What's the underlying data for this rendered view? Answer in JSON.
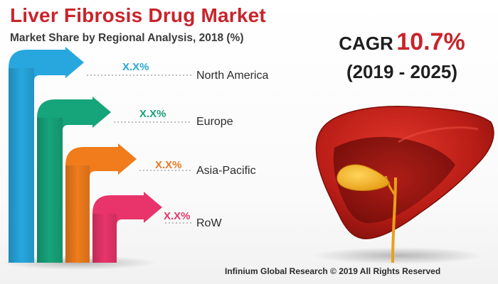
{
  "header": {
    "title": "Liver Fibrosis Drug Market",
    "subtitle": "Market Share by Regional Analysis, 2018 (%)"
  },
  "cagr": {
    "label": "CAGR",
    "value": "10.7%",
    "period": "(2019 - 2025)"
  },
  "chart_data": {
    "type": "bar",
    "categories": [
      "North America",
      "Europe",
      "Asia-Pacific",
      "RoW"
    ],
    "value_labels": [
      "X.X%",
      "X.X%",
      "X.X%",
      "X.X%"
    ],
    "colors": [
      "#27a7dd",
      "#16a47a",
      "#f07c1c",
      "#e8346a"
    ],
    "label_colors": [
      "#2aa6d9",
      "#1aa27a",
      "#e77a23",
      "#e23a6a"
    ]
  },
  "illustration": {
    "icon": "liver-icon"
  },
  "footer": {
    "copyright": "Infinium Global Research © 2019 All Rights Reserved"
  }
}
